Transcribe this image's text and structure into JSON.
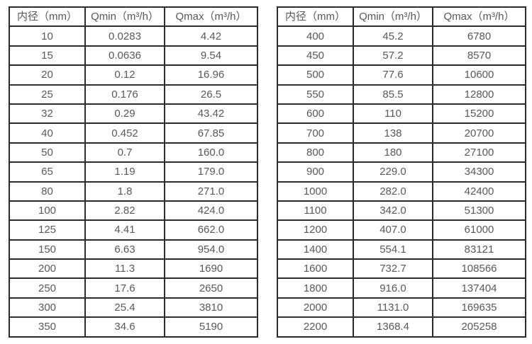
{
  "page": {
    "background": "#ffffff",
    "text_color": "#595959",
    "border_color": "#2b2b2b"
  },
  "tables": [
    {
      "id": "left",
      "headers": [
        "内径（mm）",
        "Qmin（m³/h）",
        "Qmax（m³/h）"
      ],
      "rows": [
        [
          "10",
          "0.0283",
          "4.42"
        ],
        [
          "15",
          "0.0636",
          "9.54"
        ],
        [
          "20",
          "0.12",
          "16.96"
        ],
        [
          "25",
          "0.176",
          "26.5"
        ],
        [
          "32",
          "0.29",
          "43.42"
        ],
        [
          "40",
          "0.452",
          "67.85"
        ],
        [
          "50",
          "0.7",
          "160.0"
        ],
        [
          "65",
          "1.19",
          "179.0"
        ],
        [
          "80",
          "1.8",
          "271.0"
        ],
        [
          "100",
          "2.82",
          "424.0"
        ],
        [
          "125",
          "4.41",
          "662.0"
        ],
        [
          "150",
          "6.63",
          "954.0"
        ],
        [
          "200",
          "11.3",
          "1690"
        ],
        [
          "250",
          "17.6",
          "2650"
        ],
        [
          "300",
          "25.4",
          "3810"
        ],
        [
          "350",
          "34.6",
          "5190"
        ]
      ]
    },
    {
      "id": "right",
      "headers": [
        "内径（mm）",
        "Qmin（m³/h）",
        "Qmax（m³/h）"
      ],
      "rows": [
        [
          "400",
          "45.2",
          "6780"
        ],
        [
          "450",
          "57.2",
          "8570"
        ],
        [
          "500",
          "77.6",
          "10600"
        ],
        [
          "550",
          "85.5",
          "12800"
        ],
        [
          "600",
          "110",
          "15200"
        ],
        [
          "700",
          "138",
          "20700"
        ],
        [
          "800",
          "180",
          "27100"
        ],
        [
          "900",
          "229.0",
          "34300"
        ],
        [
          "1000",
          "282.0",
          "42400"
        ],
        [
          "1100",
          "342.0",
          "51300"
        ],
        [
          "1200",
          "407.0",
          "61000"
        ],
        [
          "1400",
          "554.1",
          "83121"
        ],
        [
          "1600",
          "732.7",
          "108566"
        ],
        [
          "1800",
          "916.0",
          "137404"
        ],
        [
          "2000",
          "1131.0",
          "169635"
        ],
        [
          "2200",
          "1368.4",
          "205258"
        ]
      ]
    }
  ]
}
